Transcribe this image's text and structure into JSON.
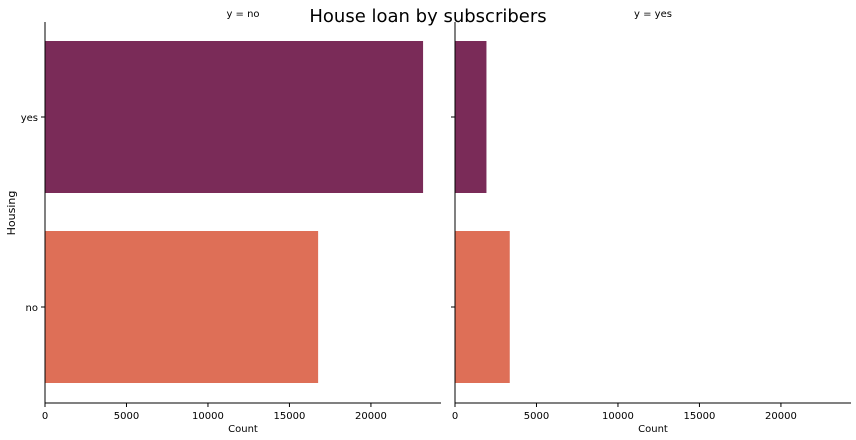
{
  "chart_data": {
    "type": "bar",
    "orientation": "horizontal",
    "title": "House loan by subscribers",
    "ylabel": "Housing",
    "xlabel": "Count",
    "categories": [
      "yes",
      "no"
    ],
    "colors": [
      "#7a2b58",
      "#de6f57"
    ],
    "xlim": [
      0,
      24300
    ],
    "xticks": [
      0,
      5000,
      10000,
      15000,
      20000
    ],
    "panels": [
      {
        "title": "y = no",
        "values": [
          23200,
          16760
        ]
      },
      {
        "title": "y = yes",
        "values": [
          1930,
          3360
        ]
      }
    ],
    "grid": false,
    "legend": "none"
  }
}
